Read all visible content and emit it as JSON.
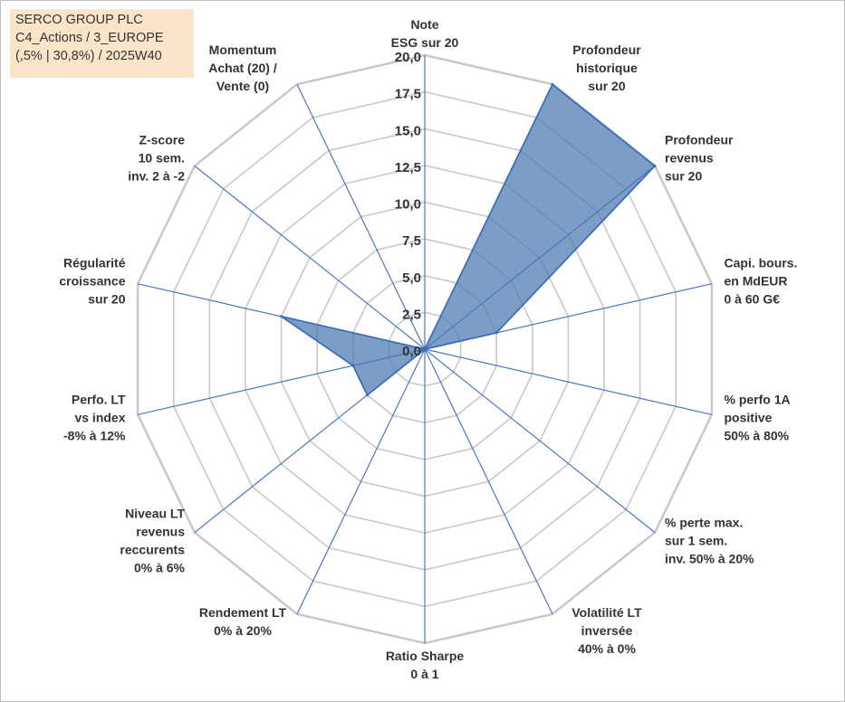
{
  "info_box": {
    "line1": "SERCO GROUP PLC",
    "line2": "C4_Actions / 3_EUROPE",
    "line3": "(,5% | 30,8%) / 2025W40"
  },
  "colors": {
    "grid": "#c8c8c8",
    "spoke": "#4a78c4",
    "fill": "#4a78b0",
    "text": "#333333",
    "info_bg": "#fbe5c8"
  },
  "chart_data": {
    "type": "radar",
    "title": "",
    "rmax": 20,
    "ticks": [
      {
        "value": 0,
        "label": "0,0"
      },
      {
        "value": 2.5,
        "label": "2,5"
      },
      {
        "value": 5,
        "label": "5,0"
      },
      {
        "value": 7.5,
        "label": "7,5"
      },
      {
        "value": 10,
        "label": "10,0"
      },
      {
        "value": 12.5,
        "label": "12,5"
      },
      {
        "value": 15,
        "label": "15,0"
      },
      {
        "value": 17.5,
        "label": "17,5"
      },
      {
        "value": 20,
        "label": "20,0"
      }
    ],
    "categories": [
      {
        "lines": [
          "Note",
          "ESG sur 20"
        ]
      },
      {
        "lines": [
          "Profondeur",
          "historique",
          "sur 20"
        ]
      },
      {
        "lines": [
          "Profondeur",
          "revenus",
          "sur 20"
        ]
      },
      {
        "lines": [
          "Capi. bours.",
          "en MdEUR",
          "0 à 60 G€"
        ]
      },
      {
        "lines": [
          "% perfo 1A",
          "positive",
          "50% à 80%"
        ]
      },
      {
        "lines": [
          "% perte max.",
          "sur 1 sem.",
          "inv. 50% à 20%"
        ]
      },
      {
        "lines": [
          "Volatilité LT",
          "inversée",
          "40% à 0%"
        ]
      },
      {
        "lines": [
          "Ratio Sharpe",
          "0 à 1"
        ]
      },
      {
        "lines": [
          "Rendement LT",
          "0% à 20%"
        ]
      },
      {
        "lines": [
          "Niveau LT",
          "revenus",
          "reccurents",
          "0% à 6%"
        ]
      },
      {
        "lines": [
          "Perfo. LT",
          "vs index",
          "-8% à 12%"
        ]
      },
      {
        "lines": [
          "Régularité",
          "croissance",
          "sur 20"
        ]
      },
      {
        "lines": [
          "Z-score",
          "10 sem.",
          "inv. 2 à -2"
        ]
      },
      {
        "lines": [
          "Momentum",
          "Achat (20) /",
          "Vente (0)"
        ]
      }
    ],
    "series": [
      {
        "values": [
          0,
          20,
          20,
          5,
          0,
          0,
          0,
          0,
          0,
          5,
          5,
          10,
          0,
          0
        ]
      }
    ]
  }
}
